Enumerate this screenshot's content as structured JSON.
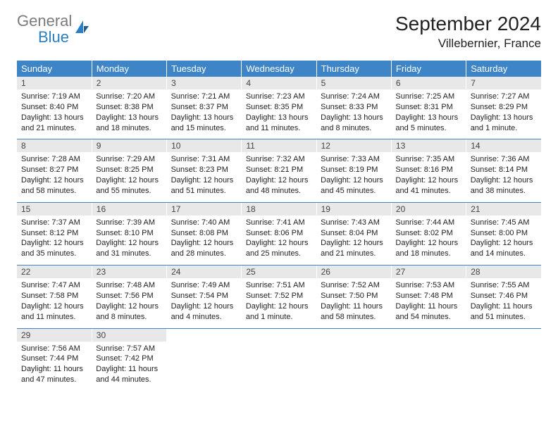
{
  "logo": {
    "word1": "General",
    "word2": "Blue",
    "word1_color": "#7a7a7a",
    "word2_color": "#2b7fc3",
    "icon_color": "#2b7fc3"
  },
  "title": "September 2024",
  "location": "Villebernier, France",
  "colors": {
    "header_bg": "#3d85c6",
    "header_text": "#ffffff",
    "daynum_bg": "#e8e8e8",
    "border": "#3d85c6"
  },
  "weekday_labels": [
    "Sunday",
    "Monday",
    "Tuesday",
    "Wednesday",
    "Thursday",
    "Friday",
    "Saturday"
  ],
  "weeks": [
    [
      {
        "n": "1",
        "sunrise": "7:19 AM",
        "sunset": "8:40 PM",
        "daylight": "13 hours and 21 minutes."
      },
      {
        "n": "2",
        "sunrise": "7:20 AM",
        "sunset": "8:38 PM",
        "daylight": "13 hours and 18 minutes."
      },
      {
        "n": "3",
        "sunrise": "7:21 AM",
        "sunset": "8:37 PM",
        "daylight": "13 hours and 15 minutes."
      },
      {
        "n": "4",
        "sunrise": "7:23 AM",
        "sunset": "8:35 PM",
        "daylight": "13 hours and 11 minutes."
      },
      {
        "n": "5",
        "sunrise": "7:24 AM",
        "sunset": "8:33 PM",
        "daylight": "13 hours and 8 minutes."
      },
      {
        "n": "6",
        "sunrise": "7:25 AM",
        "sunset": "8:31 PM",
        "daylight": "13 hours and 5 minutes."
      },
      {
        "n": "7",
        "sunrise": "7:27 AM",
        "sunset": "8:29 PM",
        "daylight": "13 hours and 1 minute."
      }
    ],
    [
      {
        "n": "8",
        "sunrise": "7:28 AM",
        "sunset": "8:27 PM",
        "daylight": "12 hours and 58 minutes."
      },
      {
        "n": "9",
        "sunrise": "7:29 AM",
        "sunset": "8:25 PM",
        "daylight": "12 hours and 55 minutes."
      },
      {
        "n": "10",
        "sunrise": "7:31 AM",
        "sunset": "8:23 PM",
        "daylight": "12 hours and 51 minutes."
      },
      {
        "n": "11",
        "sunrise": "7:32 AM",
        "sunset": "8:21 PM",
        "daylight": "12 hours and 48 minutes."
      },
      {
        "n": "12",
        "sunrise": "7:33 AM",
        "sunset": "8:19 PM",
        "daylight": "12 hours and 45 minutes."
      },
      {
        "n": "13",
        "sunrise": "7:35 AM",
        "sunset": "8:16 PM",
        "daylight": "12 hours and 41 minutes."
      },
      {
        "n": "14",
        "sunrise": "7:36 AM",
        "sunset": "8:14 PM",
        "daylight": "12 hours and 38 minutes."
      }
    ],
    [
      {
        "n": "15",
        "sunrise": "7:37 AM",
        "sunset": "8:12 PM",
        "daylight": "12 hours and 35 minutes."
      },
      {
        "n": "16",
        "sunrise": "7:39 AM",
        "sunset": "8:10 PM",
        "daylight": "12 hours and 31 minutes."
      },
      {
        "n": "17",
        "sunrise": "7:40 AM",
        "sunset": "8:08 PM",
        "daylight": "12 hours and 28 minutes."
      },
      {
        "n": "18",
        "sunrise": "7:41 AM",
        "sunset": "8:06 PM",
        "daylight": "12 hours and 25 minutes."
      },
      {
        "n": "19",
        "sunrise": "7:43 AM",
        "sunset": "8:04 PM",
        "daylight": "12 hours and 21 minutes."
      },
      {
        "n": "20",
        "sunrise": "7:44 AM",
        "sunset": "8:02 PM",
        "daylight": "12 hours and 18 minutes."
      },
      {
        "n": "21",
        "sunrise": "7:45 AM",
        "sunset": "8:00 PM",
        "daylight": "12 hours and 14 minutes."
      }
    ],
    [
      {
        "n": "22",
        "sunrise": "7:47 AM",
        "sunset": "7:58 PM",
        "daylight": "12 hours and 11 minutes."
      },
      {
        "n": "23",
        "sunrise": "7:48 AM",
        "sunset": "7:56 PM",
        "daylight": "12 hours and 8 minutes."
      },
      {
        "n": "24",
        "sunrise": "7:49 AM",
        "sunset": "7:54 PM",
        "daylight": "12 hours and 4 minutes."
      },
      {
        "n": "25",
        "sunrise": "7:51 AM",
        "sunset": "7:52 PM",
        "daylight": "12 hours and 1 minute."
      },
      {
        "n": "26",
        "sunrise": "7:52 AM",
        "sunset": "7:50 PM",
        "daylight": "11 hours and 58 minutes."
      },
      {
        "n": "27",
        "sunrise": "7:53 AM",
        "sunset": "7:48 PM",
        "daylight": "11 hours and 54 minutes."
      },
      {
        "n": "28",
        "sunrise": "7:55 AM",
        "sunset": "7:46 PM",
        "daylight": "11 hours and 51 minutes."
      }
    ],
    [
      {
        "n": "29",
        "sunrise": "7:56 AM",
        "sunset": "7:44 PM",
        "daylight": "11 hours and 47 minutes."
      },
      {
        "n": "30",
        "sunrise": "7:57 AM",
        "sunset": "7:42 PM",
        "daylight": "11 hours and 44 minutes."
      },
      null,
      null,
      null,
      null,
      null
    ]
  ],
  "labels": {
    "sunrise": "Sunrise:",
    "sunset": "Sunset:",
    "daylight": "Daylight:"
  }
}
